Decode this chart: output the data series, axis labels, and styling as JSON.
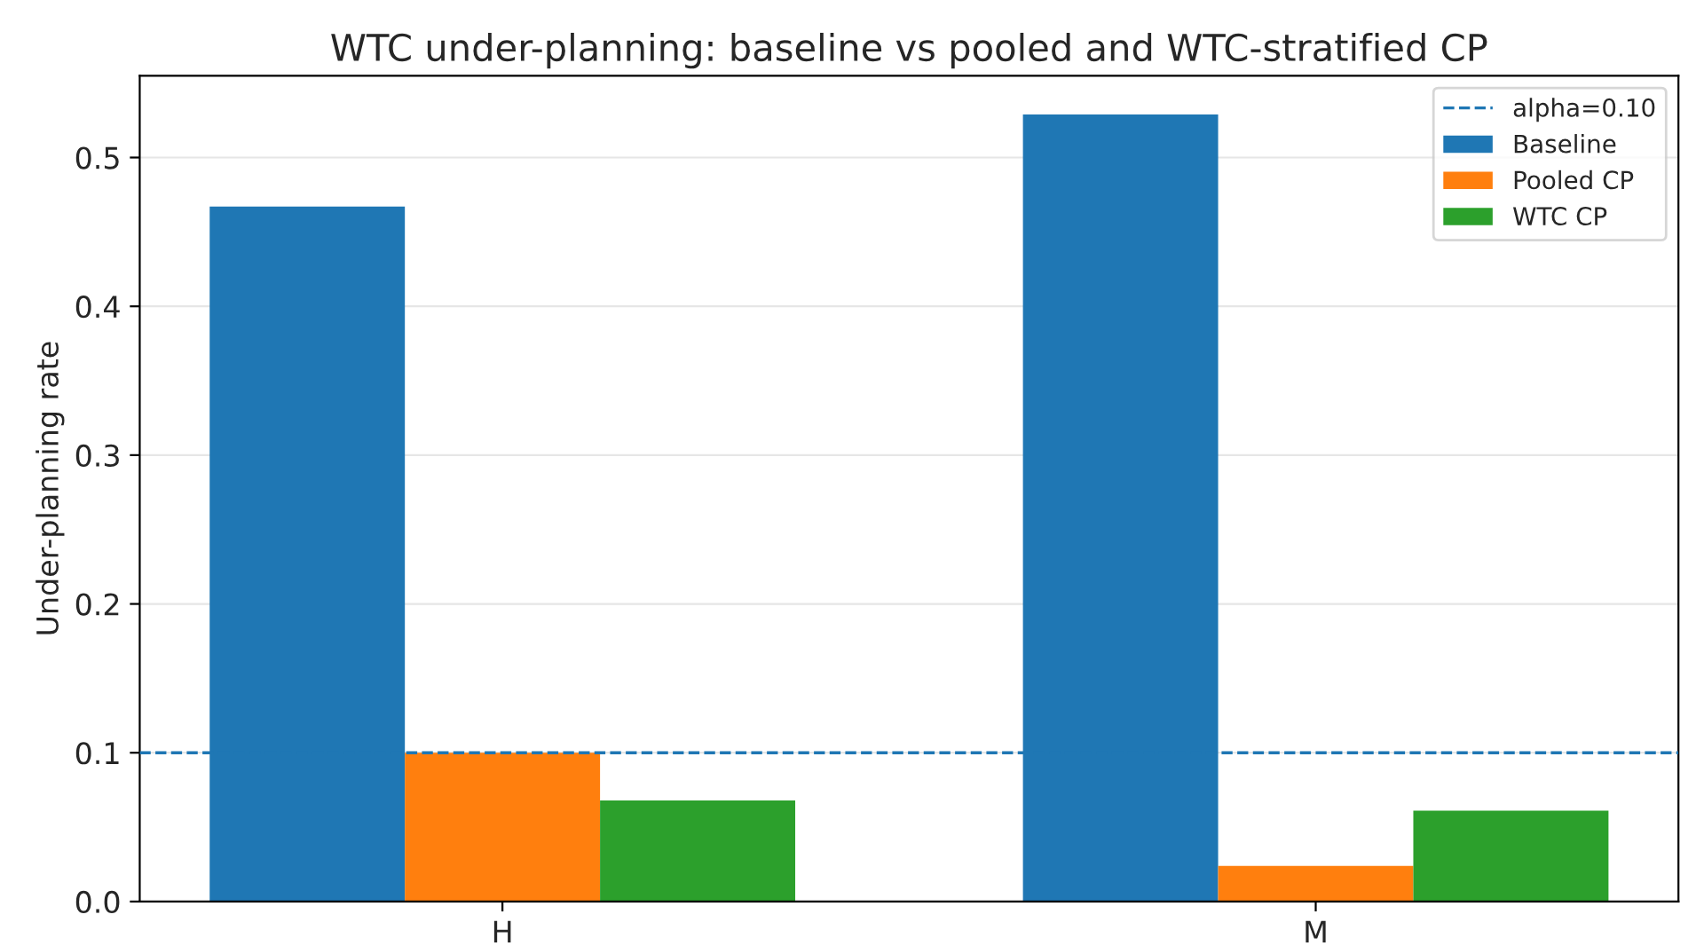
{
  "chart_data": {
    "type": "bar",
    "title": "WTC under-planning: baseline vs pooled and WTC-stratified CP",
    "ylabel": "Under-planning rate",
    "categories": [
      "H",
      "M"
    ],
    "series": [
      {
        "name": "Baseline",
        "color": "#1f77b4",
        "values": [
          0.467,
          0.529
        ]
      },
      {
        "name": "Pooled CP",
        "color": "#ff7f0e",
        "values": [
          0.1,
          0.024
        ]
      },
      {
        "name": "WTC CP",
        "color": "#2ca02c",
        "values": [
          0.068,
          0.061
        ]
      }
    ],
    "ref_lines": [
      {
        "axis": "y",
        "value": 0.1,
        "label": "alpha=0.10",
        "color": "#1f77b4",
        "line_style": "dashed"
      }
    ],
    "ylim": [
      0,
      0.555
    ],
    "yticks": [
      {
        "value": 0,
        "label": "0.0"
      },
      0.1,
      0.2,
      0.3,
      0.4,
      0.5
    ],
    "grid": "y",
    "legend": "top right"
  }
}
